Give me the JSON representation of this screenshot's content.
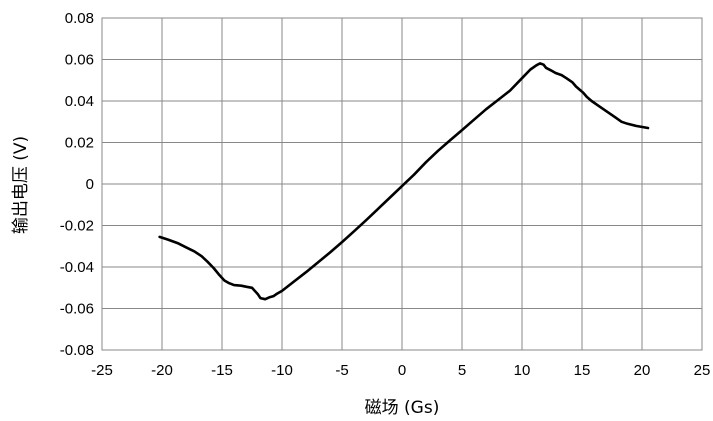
{
  "chart_data": {
    "type": "line",
    "title": "",
    "xlabel": "磁场 (Gs)",
    "ylabel": "输出电压 (V)",
    "xlim": [
      -25,
      25
    ],
    "ylim": [
      -0.08,
      0.08
    ],
    "x_ticks": [
      -25,
      -20,
      -15,
      -10,
      -5,
      0,
      5,
      10,
      15,
      20,
      25
    ],
    "y_ticks": [
      -0.08,
      -0.06,
      -0.04,
      -0.02,
      0,
      0.02,
      0.04,
      0.06,
      0.08
    ],
    "x_tick_labels": [
      "-25",
      "-20",
      "-15",
      "-10",
      "-5",
      "0",
      "5",
      "10",
      "15",
      "20",
      "25"
    ],
    "y_tick_labels": [
      "-0.08",
      "-0.06",
      "-0.04",
      "-0.02",
      "0",
      "0.02",
      "0.04",
      "0.06",
      "0.08"
    ],
    "grid": true,
    "legend": "none",
    "line_color": "#000000",
    "series": [
      {
        "x": [
          -20.2,
          -19.5,
          -18.7,
          -18.0,
          -17.3,
          -16.7,
          -16.2,
          -15.7,
          -15.2,
          -14.8,
          -14.4,
          -14.0,
          -13.4,
          -13.0,
          -12.5,
          -12.0,
          -11.8,
          -11.4,
          -11.0,
          -10.7,
          -10.4,
          -10.0,
          -9.0,
          -8.0,
          -7.0,
          -6.0,
          -5.0,
          -4.0,
          -3.0,
          -2.0,
          -1.0,
          0.0,
          1.0,
          2.0,
          3.0,
          4.0,
          5.0,
          6.0,
          7.0,
          8.0,
          9.0,
          10.0,
          10.7,
          11.2,
          11.5,
          11.8,
          12.0,
          12.4,
          12.8,
          13.3,
          13.7,
          14.2,
          14.5,
          14.8,
          15.1,
          15.4,
          15.8,
          16.3,
          16.8,
          17.3,
          17.8,
          18.3,
          18.8,
          19.5,
          20.5
        ],
        "y": [
          -0.0255,
          -0.0268,
          -0.0285,
          -0.0305,
          -0.0325,
          -0.0348,
          -0.0375,
          -0.0405,
          -0.044,
          -0.0465,
          -0.0478,
          -0.0487,
          -0.049,
          -0.0495,
          -0.05,
          -0.0532,
          -0.055,
          -0.0555,
          -0.0545,
          -0.054,
          -0.0528,
          -0.0515,
          -0.047,
          -0.0425,
          -0.0378,
          -0.033,
          -0.028,
          -0.0228,
          -0.0175,
          -0.012,
          -0.0065,
          -0.001,
          0.0045,
          0.0105,
          0.016,
          0.021,
          0.026,
          0.031,
          0.036,
          0.0405,
          0.045,
          0.051,
          0.0552,
          0.0572,
          0.0581,
          0.0575,
          0.056,
          0.0548,
          0.0535,
          0.0525,
          0.051,
          0.049,
          0.047,
          0.0455,
          0.044,
          0.042,
          0.04,
          0.038,
          0.036,
          0.034,
          0.032,
          0.03,
          0.029,
          0.028,
          0.027
        ]
      }
    ]
  }
}
